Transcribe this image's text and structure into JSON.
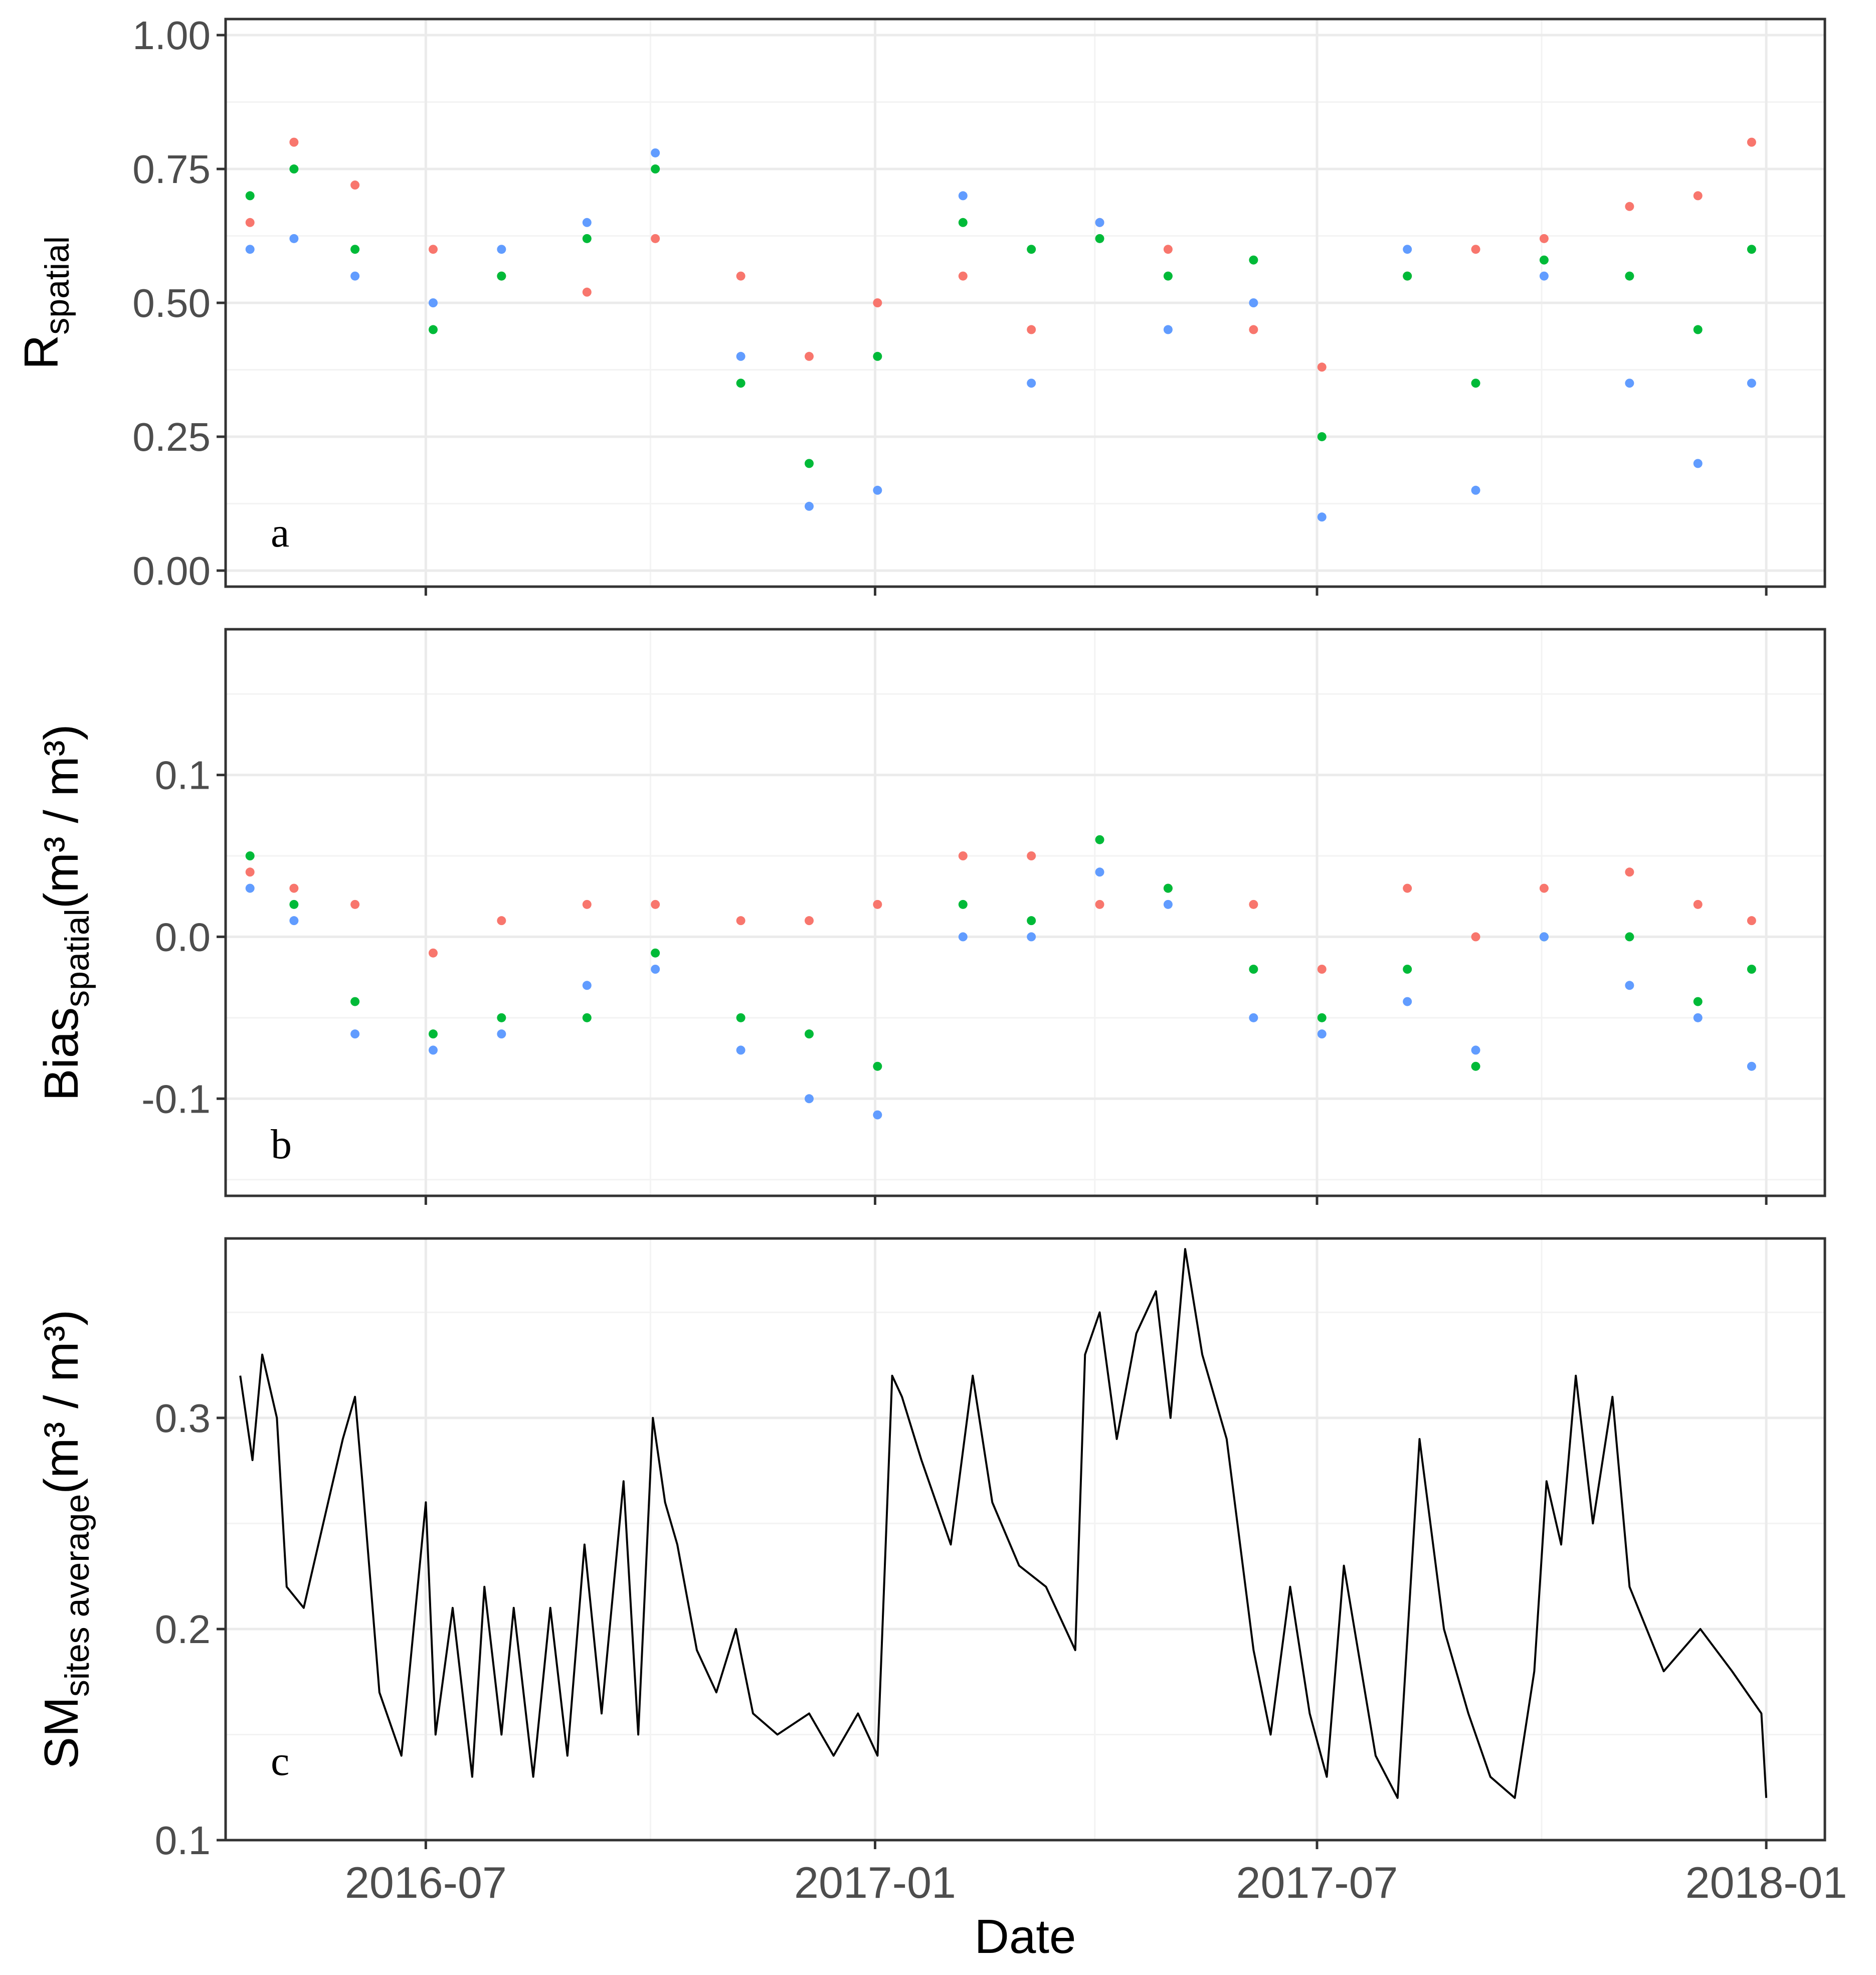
{
  "colors": {
    "series_red": "#f8766d",
    "series_green": "#00ba38",
    "series_blue": "#619cff",
    "line_black": "#000000"
  },
  "chart_data": [
    {
      "type": "scatter",
      "panel_label": "a",
      "xlabel": "",
      "ylabel": "R",
      "ylabel_sub": "spatial",
      "xlim": [
        "2016-04-10",
        "2018-01-25"
      ],
      "ylim": [
        -0.03,
        1.03
      ],
      "yticks": [
        0.0,
        0.25,
        0.5,
        0.75,
        1.0
      ],
      "ytick_labels": [
        "0.00",
        "0.25",
        "0.50",
        "0.75",
        "1.00"
      ],
      "grid": true,
      "series": [
        {
          "name": "red",
          "x": [
            "2016-04-20",
            "2016-05-08",
            "2016-06-02",
            "2016-07-04",
            "2016-08-01",
            "2016-09-05",
            "2016-10-03",
            "2016-11-07",
            "2016-12-05",
            "2017-01-02",
            "2017-02-06",
            "2017-03-06",
            "2017-04-03",
            "2017-05-01",
            "2017-06-05",
            "2017-07-03",
            "2017-08-07",
            "2017-09-04",
            "2017-10-02",
            "2017-11-06",
            "2017-12-04",
            "2017-12-26"
          ],
          "y": [
            0.65,
            0.8,
            0.72,
            0.6,
            0.55,
            0.52,
            0.62,
            0.55,
            0.4,
            0.5,
            0.55,
            0.45,
            0.65,
            0.6,
            0.45,
            0.38,
            0.55,
            0.6,
            0.62,
            0.68,
            0.7,
            0.8
          ]
        },
        {
          "name": "green",
          "x": [
            "2016-04-20",
            "2016-05-08",
            "2016-06-02",
            "2016-07-04",
            "2016-08-01",
            "2016-09-05",
            "2016-10-03",
            "2016-11-07",
            "2016-12-05",
            "2017-01-02",
            "2017-02-06",
            "2017-03-06",
            "2017-04-03",
            "2017-05-01",
            "2017-06-05",
            "2017-07-03",
            "2017-08-07",
            "2017-09-04",
            "2017-10-02",
            "2017-11-06",
            "2017-12-04",
            "2017-12-26"
          ],
          "y": [
            0.7,
            0.75,
            0.6,
            0.45,
            0.55,
            0.62,
            0.75,
            0.35,
            0.2,
            0.4,
            0.65,
            0.6,
            0.62,
            0.55,
            0.58,
            0.25,
            0.55,
            0.35,
            0.58,
            0.55,
            0.45,
            0.6
          ]
        },
        {
          "name": "blue",
          "x": [
            "2016-04-20",
            "2016-05-08",
            "2016-06-02",
            "2016-07-04",
            "2016-08-01",
            "2016-09-05",
            "2016-10-03",
            "2016-11-07",
            "2016-12-05",
            "2017-01-02",
            "2017-02-06",
            "2017-03-06",
            "2017-04-03",
            "2017-05-01",
            "2017-06-05",
            "2017-07-03",
            "2017-08-07",
            "2017-09-04",
            "2017-10-02",
            "2017-11-06",
            "2017-12-04",
            "2017-12-26"
          ],
          "y": [
            0.6,
            0.62,
            0.55,
            0.5,
            0.6,
            0.65,
            0.78,
            0.4,
            0.12,
            0.15,
            0.7,
            0.35,
            0.65,
            0.45,
            0.5,
            0.1,
            0.6,
            0.15,
            0.55,
            0.35,
            0.2,
            0.35
          ]
        }
      ]
    },
    {
      "type": "scatter",
      "panel_label": "b",
      "xlabel": "",
      "ylabel": "Bias",
      "ylabel_sub": "spatial",
      "ylabel_units": "(m³ / m³)",
      "xlim": [
        "2016-04-10",
        "2018-01-25"
      ],
      "ylim": [
        -0.16,
        0.19
      ],
      "yticks": [
        -0.1,
        0.0,
        0.1
      ],
      "ytick_labels": [
        "-0.1",
        "0.0",
        "0.1"
      ],
      "grid": true,
      "series": [
        {
          "name": "red",
          "x": [
            "2016-04-20",
            "2016-05-08",
            "2016-06-02",
            "2016-07-04",
            "2016-08-01",
            "2016-09-05",
            "2016-10-03",
            "2016-11-07",
            "2016-12-05",
            "2017-01-02",
            "2017-02-06",
            "2017-03-06",
            "2017-04-03",
            "2017-05-01",
            "2017-06-05",
            "2017-07-03",
            "2017-08-07",
            "2017-09-04",
            "2017-10-02",
            "2017-11-06",
            "2017-12-04",
            "2017-12-26"
          ],
          "y": [
            0.04,
            0.03,
            0.02,
            -0.01,
            0.01,
            0.02,
            0.02,
            0.01,
            0.01,
            0.02,
            0.05,
            0.05,
            0.02,
            0.03,
            0.02,
            -0.02,
            0.03,
            0.0,
            0.03,
            0.04,
            0.02,
            0.01
          ]
        },
        {
          "name": "green",
          "x": [
            "2016-04-20",
            "2016-05-08",
            "2016-06-02",
            "2016-07-04",
            "2016-08-01",
            "2016-09-05",
            "2016-10-03",
            "2016-11-07",
            "2016-12-05",
            "2017-01-02",
            "2017-02-06",
            "2017-03-06",
            "2017-04-03",
            "2017-05-01",
            "2017-06-05",
            "2017-07-03",
            "2017-08-07",
            "2017-09-04",
            "2017-10-02",
            "2017-11-06",
            "2017-12-04",
            "2017-12-26"
          ],
          "y": [
            0.05,
            0.02,
            -0.04,
            -0.06,
            -0.05,
            -0.05,
            -0.01,
            -0.05,
            -0.06,
            -0.08,
            0.02,
            0.01,
            0.06,
            0.03,
            -0.02,
            -0.05,
            -0.02,
            -0.08,
            0.0,
            0.0,
            -0.04,
            -0.02
          ]
        },
        {
          "name": "blue",
          "x": [
            "2016-04-20",
            "2016-05-08",
            "2016-06-02",
            "2016-07-04",
            "2016-08-01",
            "2016-09-05",
            "2016-10-03",
            "2016-11-07",
            "2016-12-05",
            "2017-01-02",
            "2017-02-06",
            "2017-03-06",
            "2017-04-03",
            "2017-05-01",
            "2017-06-05",
            "2017-07-03",
            "2017-08-07",
            "2017-09-04",
            "2017-10-02",
            "2017-11-06",
            "2017-12-04",
            "2017-12-26"
          ],
          "y": [
            0.03,
            0.01,
            -0.06,
            -0.07,
            -0.06,
            -0.03,
            -0.02,
            -0.07,
            -0.1,
            -0.11,
            0.0,
            0.0,
            0.04,
            0.02,
            -0.05,
            -0.06,
            -0.04,
            -0.07,
            0.0,
            -0.03,
            -0.05,
            -0.08
          ]
        }
      ]
    },
    {
      "type": "line",
      "panel_label": "c",
      "xlabel": "Date",
      "ylabel": "SM",
      "ylabel_sub": "sites average",
      "ylabel_units": "(m³ / m³)",
      "xlim": [
        "2016-04-10",
        "2018-01-25"
      ],
      "ylim": [
        0.1,
        0.385
      ],
      "yticks": [
        0.1,
        0.2,
        0.3
      ],
      "ytick_labels": [
        "0.1",
        "0.2",
        "0.3"
      ],
      "xticks": [
        "2016-07-01",
        "2017-01-01",
        "2017-07-01",
        "2018-01-01"
      ],
      "xtick_labels": [
        "2016-07",
        "2017-01",
        "2017-07",
        "2018-01"
      ],
      "grid": true,
      "series": [
        {
          "name": "SM sites average",
          "x": [
            "2016-04-16",
            "2016-04-21",
            "2016-04-25",
            "2016-05-01",
            "2016-05-05",
            "2016-05-12",
            "2016-05-22",
            "2016-05-28",
            "2016-06-02",
            "2016-06-05",
            "2016-06-12",
            "2016-06-21",
            "2016-06-26",
            "2016-07-01",
            "2016-07-05",
            "2016-07-12",
            "2016-07-20",
            "2016-07-25",
            "2016-08-01",
            "2016-08-06",
            "2016-08-14",
            "2016-08-21",
            "2016-08-28",
            "2016-09-04",
            "2016-09-11",
            "2016-09-20",
            "2016-09-26",
            "2016-10-02",
            "2016-10-07",
            "2016-10-12",
            "2016-10-20",
            "2016-10-28",
            "2016-11-05",
            "2016-11-12",
            "2016-11-22",
            "2016-12-05",
            "2016-12-15",
            "2016-12-25",
            "2017-01-02",
            "2017-01-08",
            "2017-01-12",
            "2017-01-20",
            "2017-02-01",
            "2017-02-10",
            "2017-02-18",
            "2017-03-01",
            "2017-03-12",
            "2017-03-24",
            "2017-03-28",
            "2017-04-03",
            "2017-04-10",
            "2017-04-18",
            "2017-04-26",
            "2017-05-02",
            "2017-05-08",
            "2017-05-15",
            "2017-05-25",
            "2017-06-05",
            "2017-06-12",
            "2017-06-20",
            "2017-06-28",
            "2017-07-05",
            "2017-07-12",
            "2017-07-25",
            "2017-08-03",
            "2017-08-12",
            "2017-08-22",
            "2017-09-01",
            "2017-09-10",
            "2017-09-20",
            "2017-09-28",
            "2017-10-03",
            "2017-10-09",
            "2017-10-15",
            "2017-10-22",
            "2017-10-30",
            "2017-11-06",
            "2017-11-20",
            "2017-12-05",
            "2017-12-18",
            "2017-12-30",
            "2018-01-01"
          ],
          "y": [
            0.32,
            0.28,
            0.33,
            0.3,
            0.22,
            0.21,
            0.26,
            0.29,
            0.31,
            0.27,
            0.17,
            0.14,
            0.2,
            0.26,
            0.15,
            0.21,
            0.13,
            0.22,
            0.15,
            0.21,
            0.13,
            0.21,
            0.14,
            0.24,
            0.16,
            0.27,
            0.15,
            0.3,
            0.26,
            0.24,
            0.19,
            0.17,
            0.2,
            0.16,
            0.15,
            0.16,
            0.14,
            0.16,
            0.14,
            0.32,
            0.31,
            0.28,
            0.24,
            0.32,
            0.26,
            0.23,
            0.22,
            0.19,
            0.33,
            0.35,
            0.29,
            0.34,
            0.36,
            0.3,
            0.38,
            0.33,
            0.29,
            0.19,
            0.15,
            0.22,
            0.16,
            0.13,
            0.23,
            0.14,
            0.12,
            0.29,
            0.2,
            0.16,
            0.13,
            0.12,
            0.18,
            0.27,
            0.24,
            0.32,
            0.25,
            0.31,
            0.22,
            0.18,
            0.2,
            0.18,
            0.16,
            0.12
          ]
        }
      ]
    }
  ]
}
